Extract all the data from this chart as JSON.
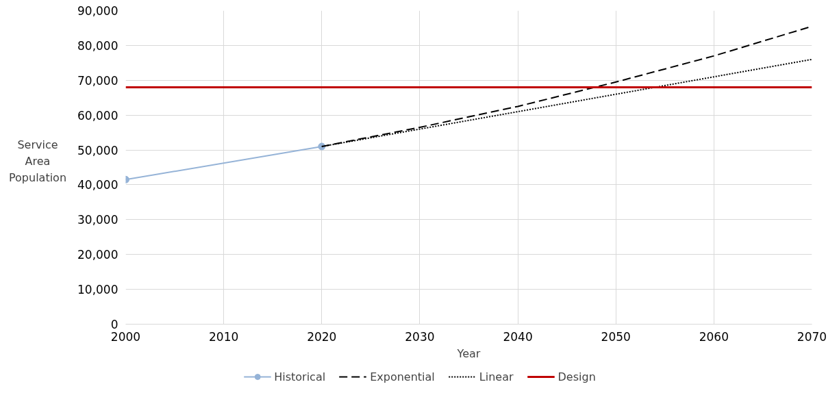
{
  "chart_data": {
    "type": "line",
    "xlabel": "Year",
    "ylabel": "Service Area Population",
    "xlim": [
      2000,
      2070
    ],
    "xticks": [
      {
        "value": 2000,
        "label": "2000"
      },
      {
        "value": 2010,
        "label": "2010"
      },
      {
        "value": 2020,
        "label": "2020"
      },
      {
        "value": 2030,
        "label": "2030"
      },
      {
        "value": 2040,
        "label": "2040"
      },
      {
        "value": 2050,
        "label": "2050"
      },
      {
        "value": 2060,
        "label": "2060"
      },
      {
        "value": 2070,
        "label": "2070"
      }
    ],
    "ylim": [
      0,
      90000
    ],
    "yticks": [
      {
        "value": 0,
        "label": "0"
      },
      {
        "value": 10000,
        "label": "10,000"
      },
      {
        "value": 20000,
        "label": "20,000"
      },
      {
        "value": 30000,
        "label": "30,000"
      },
      {
        "value": 40000,
        "label": "40,000"
      },
      {
        "value": 50000,
        "label": "50,000"
      },
      {
        "value": 60000,
        "label": "60,000"
      },
      {
        "value": 70000,
        "label": "70,000"
      },
      {
        "value": 80000,
        "label": "80,000"
      },
      {
        "value": 90000,
        "label": "90,000"
      }
    ],
    "grid": true,
    "legend": "bottom",
    "series": [
      {
        "name": "Historical",
        "color": "#95b3d7",
        "x": [
          2000,
          2020
        ],
        "values": [
          41500,
          51000
        ],
        "marker": "circle",
        "line_style": "solid"
      },
      {
        "name": "Exponential",
        "color": "#000000",
        "x": [
          2020,
          2030,
          2040,
          2050,
          2060,
          2070
        ],
        "values": [
          51000,
          56500,
          62500,
          69500,
          77000,
          85500
        ],
        "line_style": "dashed"
      },
      {
        "name": "Linear",
        "color": "#000000",
        "x": [
          2020,
          2030,
          2040,
          2050,
          2060,
          2070
        ],
        "values": [
          51000,
          56000,
          61000,
          66000,
          71000,
          76000
        ],
        "line_style": "dotted"
      },
      {
        "name": "Design",
        "color": "#c00000",
        "x": [
          2000,
          2070
        ],
        "values": [
          68000,
          68000
        ],
        "line_style": "solid"
      }
    ]
  }
}
